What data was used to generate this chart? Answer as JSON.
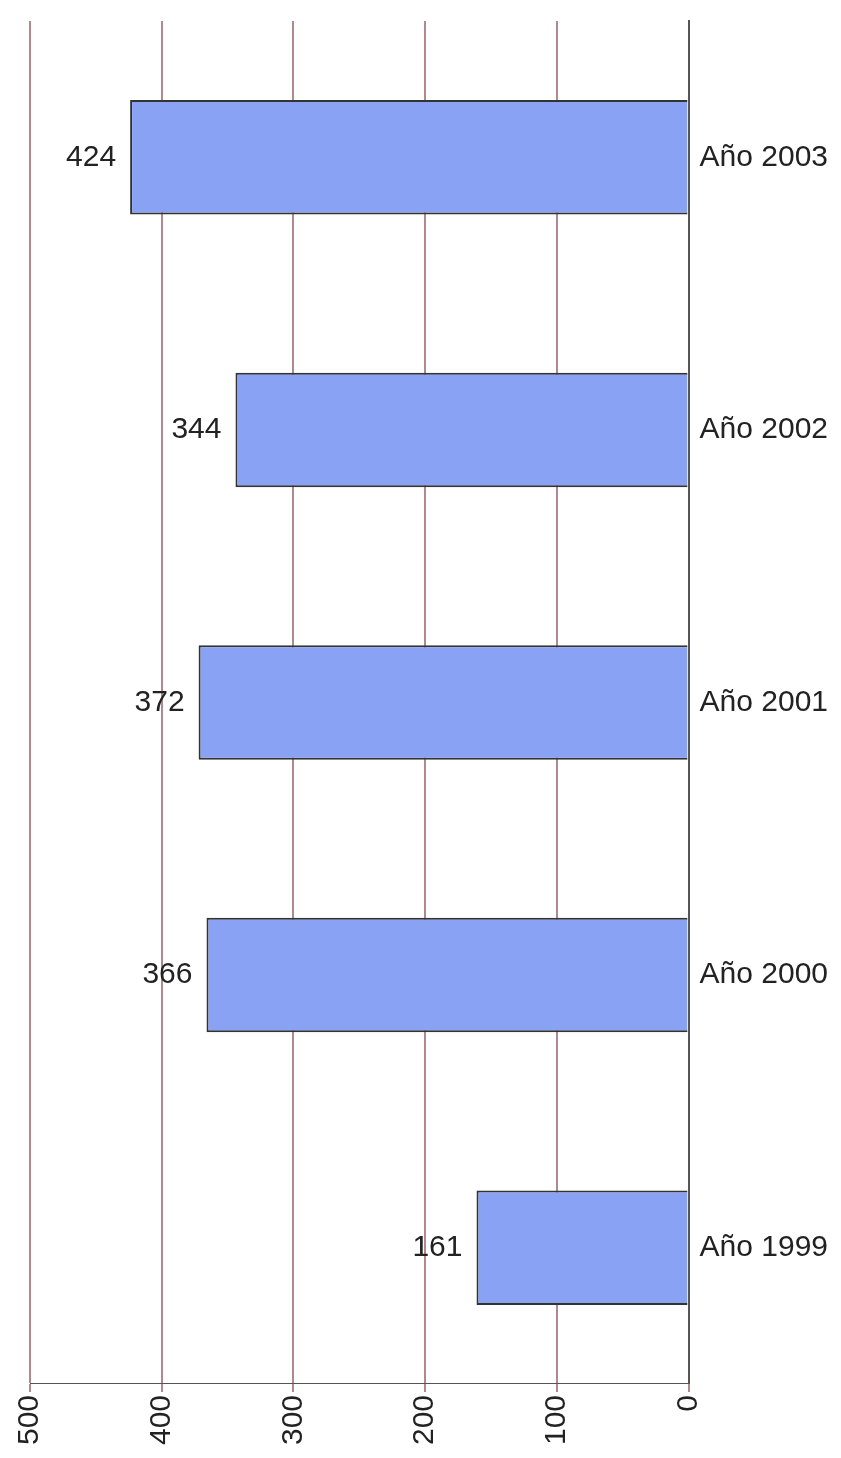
{
  "chart_data": {
    "type": "bar",
    "orientation": "horizontal",
    "categories": [
      "Año 2003",
      "Año 2002",
      "Año 2001",
      "Año 2000",
      "Año 1999"
    ],
    "values": [
      424,
      344,
      372,
      366,
      161
    ],
    "color": "#8aa2f4",
    "xlim": [
      500,
      0
    ],
    "xticks": [
      500,
      400,
      300,
      200,
      100,
      0
    ],
    "grid": "x",
    "data_labels": true
  }
}
